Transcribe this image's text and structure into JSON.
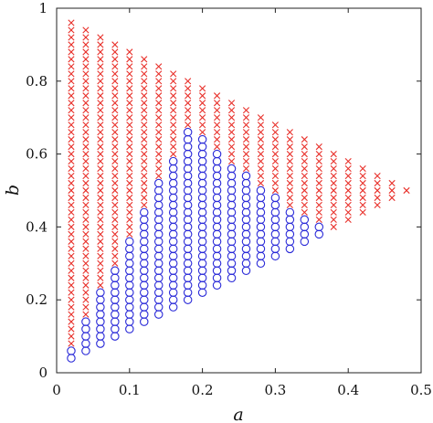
{
  "chart_data": {
    "type": "scatter",
    "xlabel": "a",
    "ylabel": "b",
    "xlim": [
      0,
      0.5
    ],
    "ylim": [
      0,
      1
    ],
    "xticks": [
      "0",
      "0.1",
      "0.2",
      "0.3",
      "0.4",
      "0.5"
    ],
    "yticks": [
      "0",
      "0.2",
      "0.4",
      "0.6",
      "0.8",
      "1"
    ],
    "grid": false,
    "grid_x": [
      0.02,
      0.04,
      0.06,
      0.08,
      0.1,
      0.12,
      0.14,
      0.16,
      0.18,
      0.2,
      0.22,
      0.24,
      0.26,
      0.28,
      0.3,
      0.32,
      0.34,
      0.36,
      0.38,
      0.4,
      0.42,
      0.44,
      0.46,
      0.48
    ],
    "column_top": [
      0.96,
      0.94,
      0.92,
      0.9,
      0.88,
      0.86,
      0.84,
      0.82,
      0.8,
      0.78,
      0.76,
      0.74,
      0.72,
      0.7,
      0.68,
      0.66,
      0.64,
      0.62,
      0.6,
      0.58,
      0.56,
      0.54,
      0.52,
      0.5
    ],
    "column_bottom": [
      0.04,
      0.06,
      0.08,
      0.1,
      0.12,
      0.14,
      0.16,
      0.18,
      0.2,
      0.22,
      0.24,
      0.26,
      0.28,
      0.3,
      0.32,
      0.34,
      0.36,
      0.38,
      0.4,
      0.42,
      0.44,
      0.46,
      0.48,
      0.5
    ],
    "circle_top": [
      0.06,
      0.14,
      0.22,
      0.28,
      0.36,
      0.44,
      0.52,
      0.58,
      0.66,
      0.64,
      0.6,
      0.56,
      0.54,
      0.5,
      0.48,
      0.44,
      0.42,
      0.4,
      null,
      null,
      null,
      null,
      null,
      null
    ],
    "y_step": 0.02,
    "series": [
      {
        "marker": "x",
        "color": "#e8302a"
      },
      {
        "marker": "o",
        "color": "#2a2ad8"
      }
    ]
  }
}
